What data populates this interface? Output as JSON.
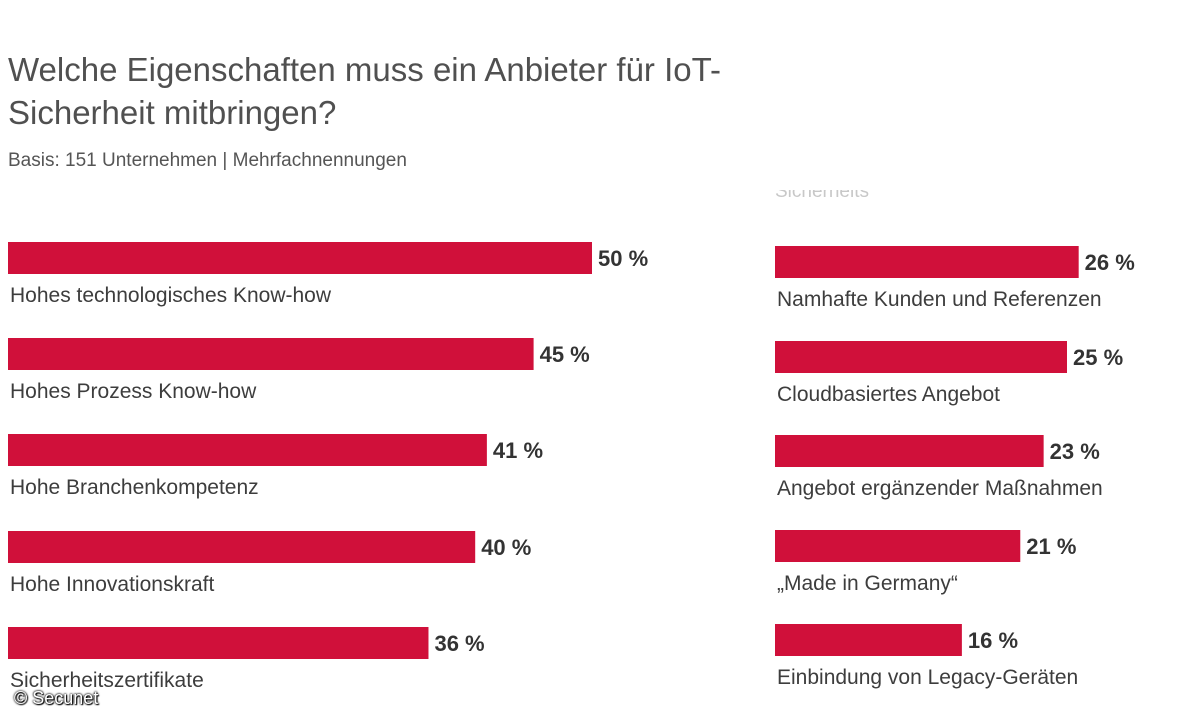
{
  "title": "Welche Eigenschaften muss ein Anbieter für IoT-Sicherheit mitbringen?",
  "subtitle": "Basis: 151 Unternehmen | Mehrfachnennungen",
  "copyright": "© Secunet",
  "colors": {
    "bar": "#d0103a",
    "text": "#3d3d3d"
  },
  "chart_data": {
    "type": "bar",
    "orientation": "horizontal",
    "unit": "%",
    "xlim": [
      0,
      50
    ],
    "grid": false,
    "legend": "none",
    "categories": [
      "Hohes technologisches Know-how",
      "Hohes Prozess Know-how",
      "Hohe Branchenkompetenz",
      "Hohe Innovationskraft",
      "Sicherheitszertifikate",
      "Namhafte Kunden und Referenzen",
      "Cloudbasiertes Angebot",
      "Angebot ergänzender Maßnahmen",
      "„Made in Germany“",
      "Einbindung von Legacy-Geräten"
    ],
    "values": [
      50,
      45,
      41,
      40,
      36,
      26,
      25,
      23,
      21,
      16
    ],
    "value_labels": [
      "50 %",
      "45 %",
      "41 %",
      "40 %",
      "36 %",
      "26 %",
      "25 %",
      "23 %",
      "21 %",
      "16 %"
    ]
  }
}
